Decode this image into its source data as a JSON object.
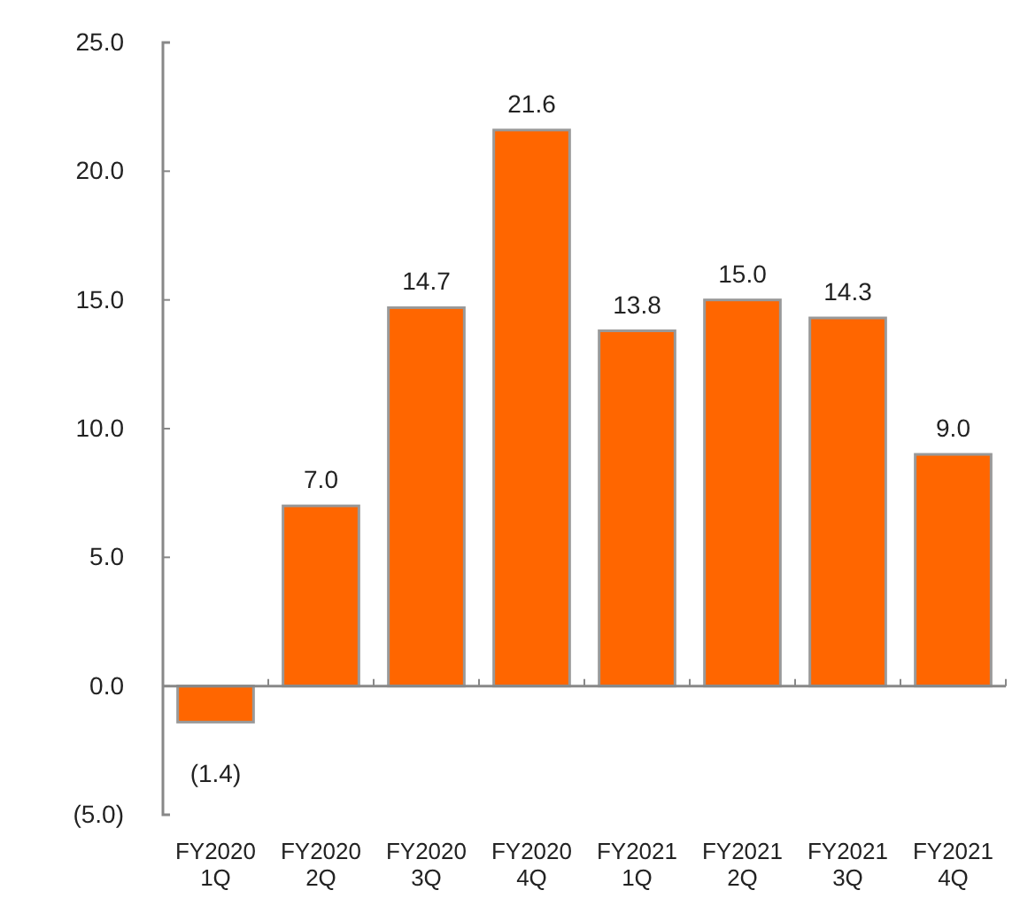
{
  "chart_data": {
    "type": "bar",
    "categories": [
      "FY2020\n1Q",
      "FY2020\n2Q",
      "FY2020\n3Q",
      "FY2020\n4Q",
      "FY2021\n1Q",
      "FY2021\n2Q",
      "FY2021\n3Q",
      "FY2021\n4Q"
    ],
    "values": [
      -1.4,
      7.0,
      14.7,
      21.6,
      13.8,
      15.0,
      14.3,
      9.0
    ],
    "value_labels": [
      "(1.4)",
      "7.0",
      "14.7",
      "21.6",
      "13.8",
      "15.0",
      "14.3",
      "9.0"
    ],
    "color": "#ff6600",
    "ylim": [
      -5,
      25
    ],
    "yticks": [
      {
        "value": -5,
        "label": "(5.0)"
      },
      {
        "value": 0,
        "label": "0.0"
      },
      {
        "value": 5,
        "label": "5.0"
      },
      {
        "value": 10,
        "label": "10.0"
      },
      {
        "value": 15,
        "label": "15.0"
      },
      {
        "value": 20,
        "label": "20.0"
      },
      {
        "value": 25,
        "label": "25.0"
      }
    ]
  }
}
